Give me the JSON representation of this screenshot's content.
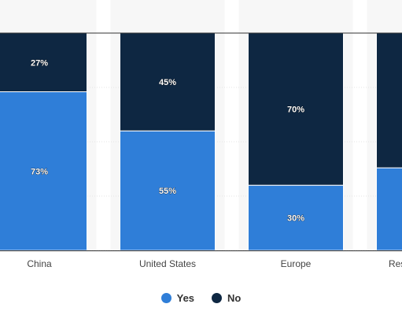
{
  "chart_data": {
    "type": "bar",
    "stacked": true,
    "percent_stacked": true,
    "categories": [
      "China",
      "United States",
      "Europe",
      "Rest of the world"
    ],
    "series": [
      {
        "name": "Yes",
        "values": [
          73,
          55,
          30,
          38
        ],
        "color": "#2f7ed8"
      },
      {
        "name": "No",
        "values": [
          27,
          45,
          70,
          62
        ],
        "color": "#0e2742"
      }
    ],
    "value_labels": {
      "Yes": [
        "73%",
        "55%",
        "30%",
        ""
      ],
      "No": [
        "27%",
        "45%",
        "70%",
        ""
      ]
    },
    "ylim": [
      0,
      100
    ],
    "grid": true,
    "legend_position": "bottom-center",
    "title": "",
    "xlabel": "",
    "ylabel": ""
  },
  "legend": {
    "items": [
      {
        "label": "Yes",
        "color": "#2f7ed8"
      },
      {
        "label": "No",
        "color": "#0e2742"
      }
    ]
  },
  "colors": {
    "band": "#f7f7f7",
    "grid": "#e6e6e6",
    "axis": "#333333",
    "label_text": "#ffffff",
    "tick_text": "#444444"
  }
}
